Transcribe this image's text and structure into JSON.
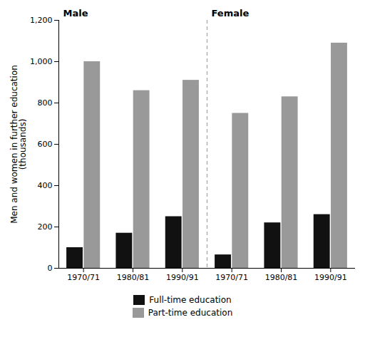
{
  "chart_data": {
    "type": "bar",
    "ylabel": "Men and women in further education\n(thousands)",
    "categories": [
      "1970/71",
      "1980/81",
      "1990/91",
      "1970/71",
      "1980/81",
      "1990/91"
    ],
    "series": [
      {
        "name": "Full-time education",
        "color": "#111111",
        "values": [
          100,
          170,
          250,
          65,
          220,
          260
        ]
      },
      {
        "name": "Part-time education",
        "color": "#999999",
        "values": [
          1000,
          860,
          910,
          750,
          830,
          1090
        ]
      }
    ],
    "annotations": [
      "Male",
      "Female"
    ],
    "ylim": [
      0,
      1200
    ],
    "yticks": [
      0,
      200,
      400,
      600,
      800,
      1000,
      1200
    ],
    "legend": "bottom",
    "grid": false
  }
}
